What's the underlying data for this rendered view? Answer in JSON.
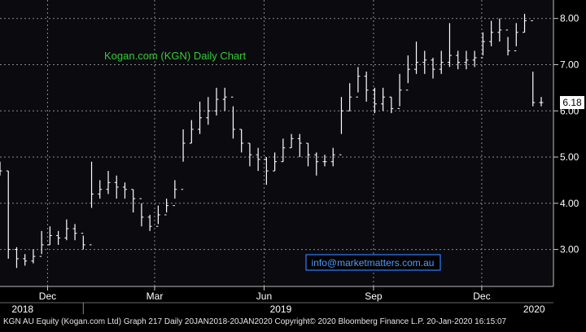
{
  "chart_data": {
    "type": "ohlc",
    "title": "Kogan.com (KGN) Daily Chart",
    "watermark": "info@marketmatters.com.au",
    "footer": "KGN AU Equity (Kogan.com Ltd) Graph 217  Daily 20JAN2018-20JAN2020  Copyright© 2020 Bloomberg Finance L.P.   20-Jan-2020 16:15:07",
    "last_price_label": "6.18",
    "y_ticks": [
      "3.00",
      "4.00",
      "5.00",
      "6.00",
      "7.00",
      "8.00"
    ],
    "y_tick_values": [
      3,
      4,
      5,
      6,
      7,
      8
    ],
    "ylim": [
      2.2,
      8.4
    ],
    "x_range": [
      "2018-10-22",
      "2020-01-20"
    ],
    "month_ticks": [
      {
        "label": "Dec",
        "date": "2018-12-01"
      },
      {
        "label": "Mar",
        "date": "2019-03-01"
      },
      {
        "label": "Jun",
        "date": "2019-06-01"
      },
      {
        "label": "Sep",
        "date": "2019-09-01"
      },
      {
        "label": "Dec",
        "date": "2019-12-01"
      }
    ],
    "year_labels": [
      {
        "label": "2018",
        "date": "2018-11-10"
      },
      {
        "label": "2019",
        "date": "2019-06-15"
      },
      {
        "label": "2020",
        "date": "2020-01-14"
      }
    ],
    "year_dividers": [
      "2018-12-31"
    ],
    "dates": [
      "2018-10-22",
      "2018-10-29",
      "2018-11-05",
      "2018-11-12",
      "2018-11-19",
      "2018-11-26",
      "2018-12-03",
      "2018-12-10",
      "2018-12-17",
      "2018-12-24",
      "2018-12-31",
      "2019-01-07",
      "2019-01-14",
      "2019-01-21",
      "2019-01-28",
      "2019-02-04",
      "2019-02-11",
      "2019-02-18",
      "2019-02-25",
      "2019-03-04",
      "2019-03-11",
      "2019-03-18",
      "2019-03-25",
      "2019-04-01",
      "2019-04-08",
      "2019-04-15",
      "2019-04-22",
      "2019-04-29",
      "2019-05-06",
      "2019-05-13",
      "2019-05-20",
      "2019-05-27",
      "2019-06-03",
      "2019-06-10",
      "2019-06-17",
      "2019-06-24",
      "2019-07-01",
      "2019-07-08",
      "2019-07-15",
      "2019-07-22",
      "2019-07-29",
      "2019-08-05",
      "2019-08-12",
      "2019-08-19",
      "2019-08-26",
      "2019-09-02",
      "2019-09-09",
      "2019-09-16",
      "2019-09-23",
      "2019-09-30",
      "2019-10-07",
      "2019-10-14",
      "2019-10-21",
      "2019-10-28",
      "2019-11-04",
      "2019-11-11",
      "2019-11-18",
      "2019-11-25",
      "2019-12-02",
      "2019-12-09",
      "2019-12-16",
      "2019-12-23",
      "2019-12-30",
      "2020-01-06",
      "2020-01-13",
      "2020-01-20"
    ],
    "close": [
      4.7,
      3.0,
      2.8,
      2.75,
      2.85,
      3.1,
      3.3,
      3.25,
      3.45,
      3.35,
      3.1,
      4.2,
      4.3,
      4.45,
      4.35,
      4.3,
      4.1,
      3.7,
      3.5,
      3.75,
      3.95,
      4.3,
      5.3,
      5.6,
      5.85,
      6.0,
      6.25,
      6.3,
      5.6,
      5.3,
      5.05,
      4.95,
      4.7,
      4.9,
      5.2,
      5.4,
      5.3,
      5.05,
      4.9,
      4.9,
      5.05,
      6.0,
      6.3,
      6.75,
      6.45,
      6.15,
      6.3,
      6.05,
      6.45,
      6.9,
      7.05,
      7.1,
      6.9,
      7.05,
      7.2,
      7.05,
      7.1,
      7.15,
      7.5,
      7.7,
      7.75,
      7.3,
      7.7,
      7.95,
      6.18,
      6.18
    ],
    "high": [
      4.9,
      4.7,
      3.05,
      2.9,
      3.0,
      3.4,
      3.5,
      3.4,
      3.65,
      3.55,
      3.3,
      4.9,
      4.5,
      4.7,
      4.6,
      4.45,
      4.3,
      4.0,
      3.75,
      3.95,
      4.1,
      4.5,
      5.6,
      5.8,
      6.2,
      6.3,
      6.5,
      6.5,
      6.1,
      5.6,
      5.3,
      5.2,
      5.0,
      5.1,
      5.4,
      5.5,
      5.5,
      5.3,
      5.1,
      5.05,
      5.2,
      6.3,
      6.6,
      6.95,
      6.85,
      6.5,
      6.5,
      6.3,
      6.8,
      7.2,
      7.5,
      7.3,
      7.15,
      7.3,
      7.9,
      7.3,
      7.3,
      7.3,
      7.7,
      7.95,
      8.0,
      7.6,
      7.9,
      8.1,
      6.85,
      6.3
    ],
    "low": [
      4.6,
      2.8,
      2.6,
      2.65,
      2.7,
      2.9,
      3.1,
      3.1,
      3.2,
      3.2,
      3.0,
      3.9,
      4.1,
      4.2,
      4.1,
      4.1,
      3.8,
      3.5,
      3.4,
      3.55,
      3.8,
      4.1,
      4.9,
      5.3,
      5.5,
      5.7,
      5.9,
      6.0,
      5.4,
      5.1,
      4.8,
      4.7,
      4.4,
      4.7,
      4.9,
      5.2,
      5.0,
      4.8,
      4.6,
      4.8,
      4.8,
      5.5,
      6.0,
      6.4,
      6.2,
      5.95,
      6.0,
      5.95,
      6.1,
      6.6,
      6.8,
      6.8,
      6.7,
      6.8,
      6.95,
      6.9,
      6.9,
      6.95,
      7.2,
      7.4,
      7.5,
      7.2,
      7.4,
      7.7,
      6.1,
      6.1
    ]
  }
}
